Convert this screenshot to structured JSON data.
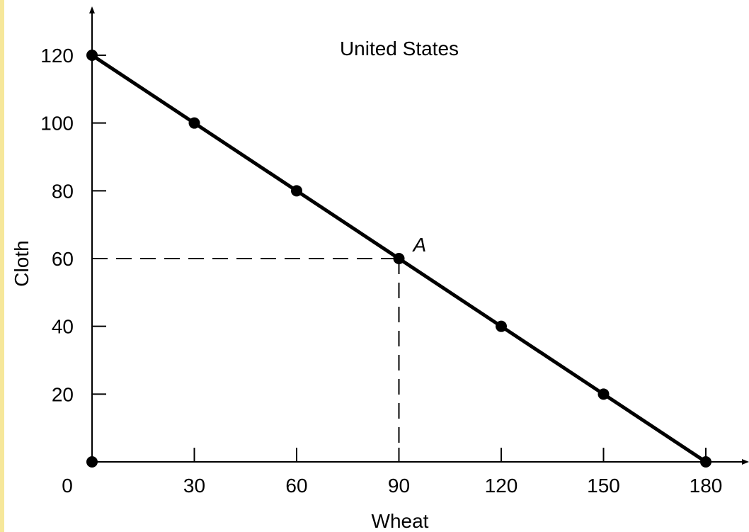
{
  "chart_data": {
    "type": "line",
    "title": "United States",
    "xlabel": "Wheat",
    "ylabel": "Cloth",
    "xlim": [
      0,
      180
    ],
    "ylim": [
      0,
      120
    ],
    "x_ticks": [
      30,
      60,
      90,
      120,
      150,
      180
    ],
    "y_ticks": [
      20,
      40,
      60,
      80,
      100,
      120
    ],
    "origin_label": "0",
    "series": [
      {
        "x": [
          0,
          30,
          60,
          90,
          120,
          150,
          180
        ],
        "y": [
          120,
          100,
          80,
          60,
          40,
          20,
          0
        ]
      }
    ],
    "extra_points": [
      {
        "x": 0,
        "y": 0
      }
    ],
    "annotations": [
      {
        "label": "A",
        "x": 90,
        "y": 60,
        "guides": "dashed"
      }
    ],
    "grid": false,
    "colors": {
      "line": "#000000",
      "background": "#ffffff",
      "left_strip": "#f6e79a"
    }
  }
}
